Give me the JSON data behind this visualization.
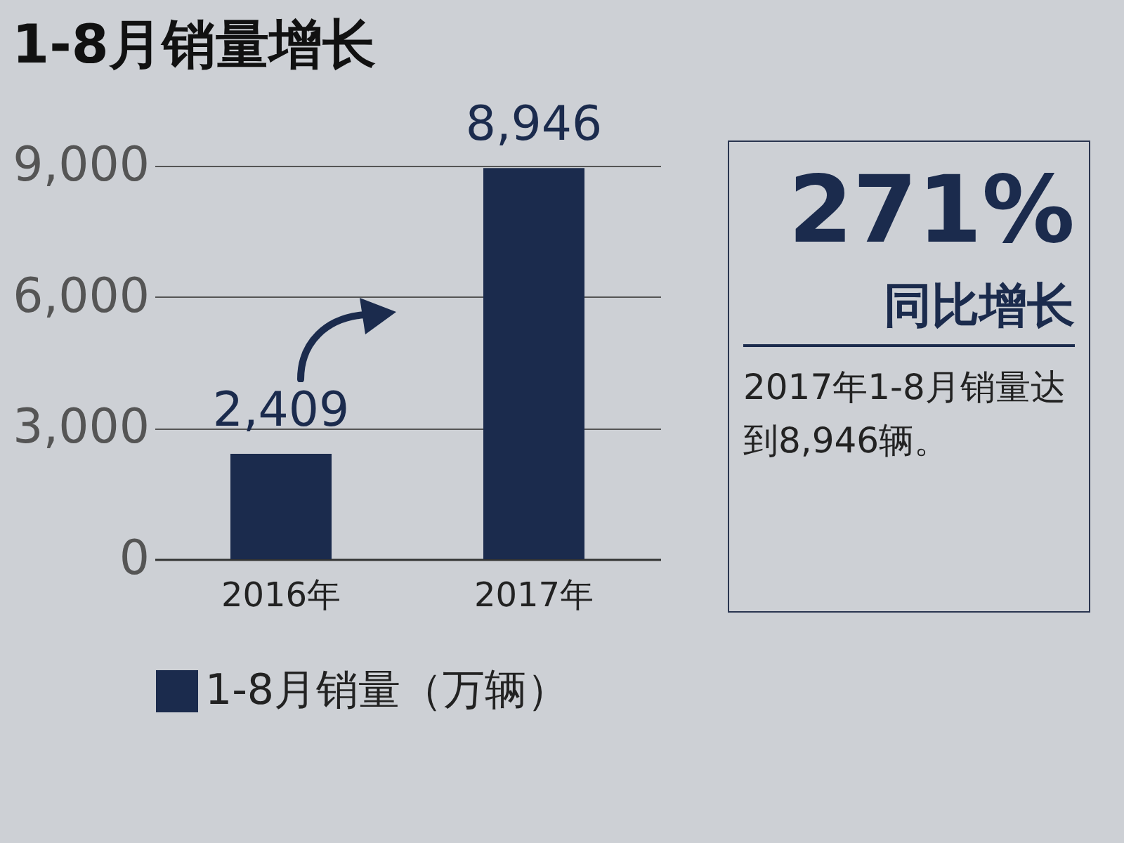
{
  "chart_data": [
    {
      "type": "bar",
      "title": "1-8月销量增长",
      "categories": [
        "2016年",
        "2017年"
      ],
      "series": [
        {
          "name": "1-8月销量（万辆）",
          "color": "#1b2b4d",
          "values": [
            2409,
            8946
          ],
          "value_labels": [
            "2,409",
            "8,946"
          ]
        }
      ],
      "ylim": [
        0,
        9000
      ],
      "yticks": [
        0,
        {
          "value": 3000,
          "label": "3,000"
        },
        {
          "value": 6000,
          "label": "6,000"
        },
        {
          "value": 9000,
          "label": "9,000"
        }
      ],
      "grid": "y",
      "legend": "bottom"
    },
    {
      "type": "other",
      "title": "271%",
      "subtitle": "同比增长",
      "annotations": [
        "2017年1-8月销量达到8,946辆。"
      ]
    }
  ]
}
